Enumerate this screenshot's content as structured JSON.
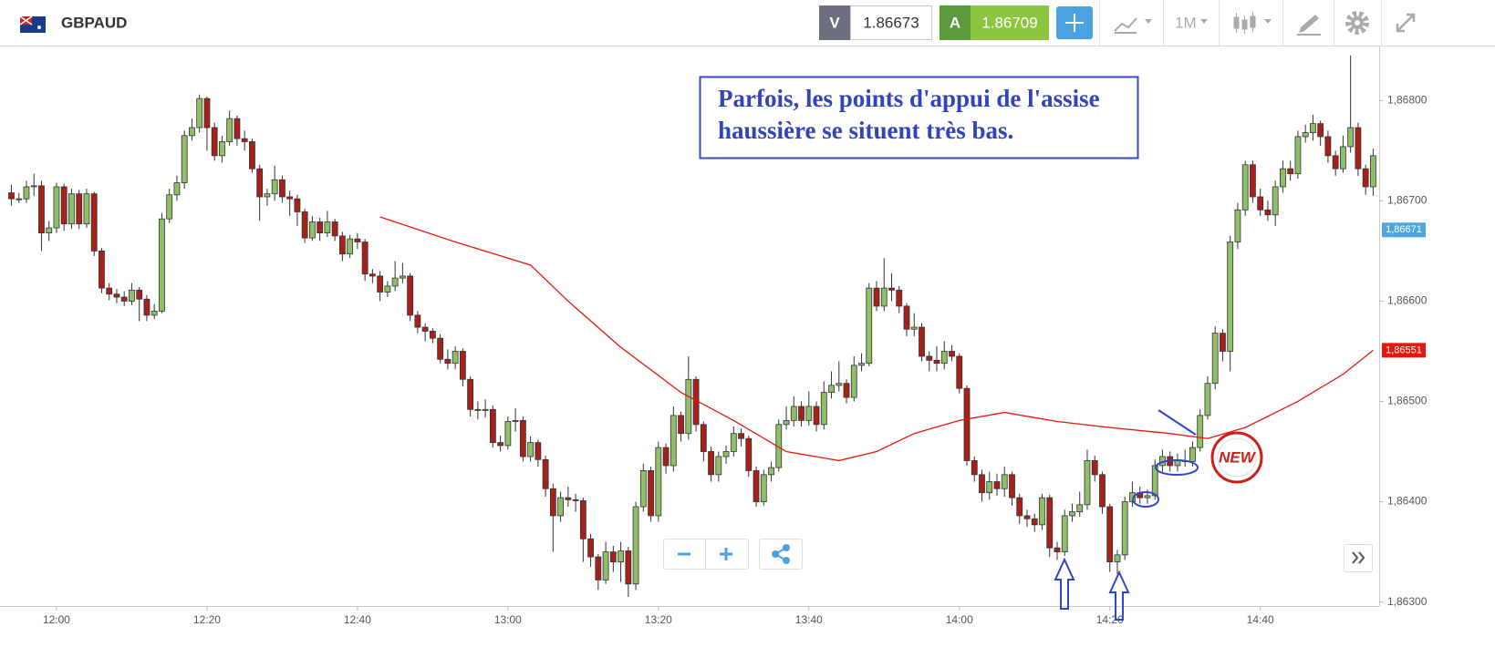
{
  "toolbar": {
    "symbol": "GBPAUD",
    "bid_tag": "V",
    "bid": "1.86673",
    "ask_tag": "A",
    "ask": "1.86709",
    "timeframe": "1M"
  },
  "chart_data": {
    "type": "candlestick",
    "x": [
      714,
      715,
      716,
      717,
      718,
      719,
      720,
      721,
      722,
      723,
      724,
      725,
      726,
      727,
      728,
      729,
      730,
      731,
      732,
      733,
      734,
      735,
      736,
      737,
      738,
      739,
      740,
      741,
      742,
      743,
      744,
      745,
      746,
      747,
      748,
      749,
      750,
      751,
      752,
      753,
      754,
      755,
      756,
      757,
      758,
      759,
      760,
      761,
      762,
      763,
      764,
      765,
      766,
      767,
      768,
      769,
      770,
      771,
      772,
      773,
      774,
      775,
      776,
      777,
      778,
      779,
      780,
      781,
      782,
      783,
      784,
      785,
      786,
      787,
      788,
      789,
      790,
      791,
      792,
      793,
      794,
      795,
      796,
      797,
      798,
      799,
      800,
      801,
      802,
      803,
      804,
      805,
      806,
      807,
      808,
      809,
      810,
      811,
      812,
      813,
      814,
      815,
      816,
      817,
      818,
      819,
      820,
      821,
      822,
      823,
      824,
      825,
      826,
      827,
      828,
      829,
      830,
      831,
      832,
      833,
      834,
      835,
      836,
      837,
      838,
      839,
      840,
      841,
      842,
      843,
      844,
      845,
      846,
      847,
      848,
      849,
      850,
      851,
      852,
      853,
      854,
      855,
      856,
      857,
      858,
      859,
      860,
      861,
      862,
      863,
      864,
      865,
      866,
      867,
      868,
      869,
      870,
      871,
      872,
      873,
      874,
      875,
      876,
      877,
      878,
      879,
      880,
      881,
      882,
      883,
      884,
      885,
      886,
      887,
      888,
      889,
      890,
      891,
      892,
      893,
      894,
      895
    ],
    "open": [
      1.86708,
      1.86702,
      1.86702,
      1.86714,
      1.86715,
      1.86668,
      1.86673,
      1.86714,
      1.86677,
      1.86707,
      1.86677,
      1.86707,
      1.8665,
      1.86613,
      1.86607,
      1.86604,
      1.866,
      1.86611,
      1.86602,
      1.86586,
      1.8659,
      1.86682,
      1.86706,
      1.86718,
      1.86765,
      1.86773,
      1.86802,
      1.86773,
      1.86745,
      1.86759,
      1.86782,
      1.86762,
      1.86759,
      1.86732,
      1.86704,
      1.86707,
      1.86721,
      1.86704,
      1.86702,
      1.86689,
      1.86663,
      1.86679,
      1.86668,
      1.86679,
      1.86665,
      1.86647,
      1.86662,
      1.86659,
      1.86627,
      1.86625,
      1.86609,
      1.86615,
      1.86623,
      1.86625,
      1.86586,
      1.86574,
      1.8657,
      1.86563,
      1.86542,
      1.86538,
      1.8655,
      1.86522,
      1.86492,
      1.86491,
      1.86492,
      1.86459,
      1.86456,
      1.8648,
      1.86481,
      1.86445,
      1.86459,
      1.86442,
      1.86413,
      1.86386,
      1.86404,
      1.86402,
      1.86401,
      1.86363,
      1.86345,
      1.86322,
      1.8635,
      1.8634,
      1.86351,
      1.86318,
      1.86395,
      1.86431,
      1.86386,
      1.86454,
      1.86436,
      1.86486,
      1.86468,
      1.86522,
      1.86477,
      1.8645,
      1.86427,
      1.86445,
      1.8645,
      1.86468,
      1.86463,
      1.86431,
      1.864,
      1.86427,
      1.86434,
      1.86477,
      1.86481,
      1.86495,
      1.86481,
      1.86495,
      1.86477,
      1.86509,
      1.86516,
      1.86518,
      1.86504,
      1.86536,
      1.86538,
      1.86613,
      1.86595,
      1.86613,
      1.86611,
      1.86595,
      1.86572,
      1.86574,
      1.86545,
      1.86541,
      1.86538,
      1.8655,
      1.86545,
      1.86513,
      1.86441,
      1.86427,
      1.86409,
      1.8642,
      1.86413,
      1.86427,
      1.86404,
      1.86386,
      1.86383,
      1.86377,
      1.86404,
      1.86354,
      1.8635,
      1.86386,
      1.8639,
      1.86397,
      1.86441,
      1.86427,
      1.86395,
      1.8634,
      1.86347,
      1.864,
      1.86409,
      1.86404,
      1.86406,
      1.86436,
      1.86445,
      1.86436,
      1.86441,
      1.8644,
      1.86454,
      1.86486,
      1.86518,
      1.86568,
      1.8655,
      1.86659,
      1.86691,
      1.86736,
      1.86704,
      1.86691,
      1.86686,
      1.86714,
      1.86732,
      1.86727,
      1.86764,
      1.86768,
      1.86777,
      1.86764,
      1.86745,
      1.86732,
      1.86754,
      1.86773,
      1.86732,
      1.86714
    ],
    "high": [
      1.86716,
      1.86708,
      1.8672,
      1.86727,
      1.8672,
      1.8668,
      1.86718,
      1.86717,
      1.86712,
      1.86711,
      1.86712,
      1.86709,
      1.86653,
      1.86618,
      1.86612,
      1.8661,
      1.86618,
      1.86614,
      1.86606,
      1.86597,
      1.86688,
      1.86712,
      1.86725,
      1.8677,
      1.86782,
      1.86806,
      1.86804,
      1.86778,
      1.86765,
      1.8679,
      1.86785,
      1.8677,
      1.86762,
      1.86736,
      1.86712,
      1.86735,
      1.86725,
      1.8671,
      1.86706,
      1.86692,
      1.86685,
      1.86683,
      1.8669,
      1.86682,
      1.86669,
      1.86666,
      1.86668,
      1.86662,
      1.86632,
      1.8663,
      1.8662,
      1.8664,
      1.86638,
      1.86628,
      1.8659,
      1.86578,
      1.86573,
      1.86567,
      1.86552,
      1.86555,
      1.86553,
      1.86525,
      1.865,
      1.86502,
      1.86496,
      1.86466,
      1.86485,
      1.86493,
      1.86485,
      1.86465,
      1.86462,
      1.86446,
      1.86418,
      1.8641,
      1.86415,
      1.86408,
      1.86404,
      1.86368,
      1.86348,
      1.8636,
      1.86356,
      1.8636,
      1.86355,
      1.864,
      1.86438,
      1.86435,
      1.8646,
      1.86458,
      1.86495,
      1.8649,
      1.86545,
      1.86525,
      1.8648,
      1.86455,
      1.8645,
      1.86456,
      1.86475,
      1.86473,
      1.86466,
      1.86435,
      1.86432,
      1.8644,
      1.86482,
      1.86495,
      1.86505,
      1.865,
      1.8651,
      1.865,
      1.8652,
      1.8653,
      1.8654,
      1.86522,
      1.86545,
      1.86548,
      1.86618,
      1.8662,
      1.86643,
      1.86628,
      1.86615,
      1.86598,
      1.86588,
      1.86578,
      1.8655,
      1.86555,
      1.8656,
      1.86556,
      1.86548,
      1.86516,
      1.86445,
      1.86432,
      1.8643,
      1.86428,
      1.86435,
      1.8643,
      1.86408,
      1.86392,
      1.86388,
      1.86408,
      1.86407,
      1.8636,
      1.86392,
      1.86398,
      1.8641,
      1.86452,
      1.86446,
      1.8643,
      1.86398,
      1.86352,
      1.86405,
      1.8642,
      1.86415,
      1.86412,
      1.86442,
      1.86452,
      1.8645,
      1.86448,
      1.86452,
      1.8646,
      1.86492,
      1.86525,
      1.86575,
      1.86572,
      1.86665,
      1.86698,
      1.8674,
      1.8674,
      1.86712,
      1.867,
      1.8672,
      1.8674,
      1.8674,
      1.8677,
      1.86776,
      1.86786,
      1.8678,
      1.8677,
      1.8675,
      1.86765,
      1.86845,
      1.86778,
      1.86736,
      1.86752
    ],
    "low": [
      1.86695,
      1.86698,
      1.86698,
      1.86705,
      1.8665,
      1.8666,
      1.86668,
      1.8667,
      1.86672,
      1.86672,
      1.86673,
      1.86645,
      1.86608,
      1.86601,
      1.86598,
      1.86595,
      1.86596,
      1.8658,
      1.8658,
      1.86582,
      1.86588,
      1.86678,
      1.867,
      1.86712,
      1.8676,
      1.86768,
      1.8675,
      1.8674,
      1.86738,
      1.86755,
      1.86755,
      1.8675,
      1.86728,
      1.8668,
      1.86695,
      1.867,
      1.86698,
      1.86685,
      1.86675,
      1.86658,
      1.8666,
      1.8666,
      1.86664,
      1.8666,
      1.8664,
      1.86643,
      1.86652,
      1.8662,
      1.86618,
      1.866,
      1.86604,
      1.8661,
      1.86618,
      1.8658,
      1.86568,
      1.8656,
      1.86558,
      1.86538,
      1.86532,
      1.86532,
      1.86515,
      1.86485,
      1.86482,
      1.86484,
      1.86454,
      1.8645,
      1.86452,
      1.8647,
      1.8644,
      1.8644,
      1.86435,
      1.86405,
      1.8635,
      1.8638,
      1.86395,
      1.8639,
      1.8634,
      1.86335,
      1.86312,
      1.86318,
      1.8633,
      1.8632,
      1.86305,
      1.86312,
      1.8639,
      1.8638,
      1.8638,
      1.86428,
      1.8643,
      1.8646,
      1.86462,
      1.8647,
      1.8644,
      1.8642,
      1.8642,
      1.86438,
      1.86445,
      1.86455,
      1.86425,
      1.86395,
      1.86396,
      1.8642,
      1.8643,
      1.86472,
      1.86475,
      1.86475,
      1.86476,
      1.8647,
      1.86472,
      1.86503,
      1.8651,
      1.86498,
      1.865,
      1.8653,
      1.86535,
      1.8659,
      1.8659,
      1.866,
      1.86588,
      1.86565,
      1.86565,
      1.8654,
      1.8653,
      1.8653,
      1.86532,
      1.8654,
      1.86508,
      1.86436,
      1.8642,
      1.864,
      1.86402,
      1.86406,
      1.86405,
      1.86396,
      1.86378,
      1.86375,
      1.8637,
      1.86372,
      1.86345,
      1.86342,
      1.86346,
      1.8638,
      1.86385,
      1.86392,
      1.8642,
      1.86388,
      1.8633,
      1.86328,
      1.86342,
      1.86395,
      1.86398,
      1.86398,
      1.86402,
      1.8643,
      1.8643,
      1.8643,
      1.86435,
      1.86435,
      1.8645,
      1.86482,
      1.86512,
      1.8654,
      1.8653,
      1.86652,
      1.86685,
      1.86698,
      1.86685,
      1.8668,
      1.86675,
      1.86708,
      1.8672,
      1.86722,
      1.86758,
      1.8676,
      1.86755,
      1.86738,
      1.86725,
      1.86728,
      1.86748,
      1.86725,
      1.86706,
      1.86705
    ],
    "close": [
      1.86702,
      1.86702,
      1.86714,
      1.86715,
      1.86668,
      1.86673,
      1.86714,
      1.86677,
      1.86707,
      1.86677,
      1.86707,
      1.8665,
      1.86613,
      1.86607,
      1.86604,
      1.866,
      1.86611,
      1.86602,
      1.86586,
      1.8659,
      1.86682,
      1.86706,
      1.86718,
      1.86765,
      1.86773,
      1.86802,
      1.86773,
      1.86745,
      1.86759,
      1.86782,
      1.86762,
      1.86759,
      1.86732,
      1.86704,
      1.86707,
      1.86721,
      1.86704,
      1.86702,
      1.86689,
      1.86663,
      1.86679,
      1.86668,
      1.86679,
      1.86665,
      1.86647,
      1.86662,
      1.86659,
      1.86627,
      1.86625,
      1.86609,
      1.86615,
      1.86623,
      1.86625,
      1.86586,
      1.86574,
      1.8657,
      1.86563,
      1.86542,
      1.86538,
      1.8655,
      1.86522,
      1.86492,
      1.86491,
      1.86492,
      1.86459,
      1.86456,
      1.8648,
      1.86481,
      1.86445,
      1.86459,
      1.86442,
      1.86413,
      1.86386,
      1.86404,
      1.86402,
      1.86401,
      1.86363,
      1.86345,
      1.86322,
      1.8635,
      1.8634,
      1.86351,
      1.86318,
      1.86395,
      1.86431,
      1.86386,
      1.86454,
      1.86436,
      1.86486,
      1.86468,
      1.86522,
      1.86477,
      1.8645,
      1.86427,
      1.86445,
      1.8645,
      1.86468,
      1.86463,
      1.86431,
      1.864,
      1.86427,
      1.86434,
      1.86477,
      1.86481,
      1.86495,
      1.86481,
      1.86495,
      1.86477,
      1.86509,
      1.86516,
      1.86518,
      1.86504,
      1.86536,
      1.86538,
      1.86613,
      1.86595,
      1.86613,
      1.86611,
      1.86595,
      1.86572,
      1.86574,
      1.86545,
      1.86541,
      1.86538,
      1.8655,
      1.86545,
      1.86513,
      1.86441,
      1.86427,
      1.86409,
      1.8642,
      1.86413,
      1.86427,
      1.86404,
      1.86386,
      1.86383,
      1.86377,
      1.86404,
      1.86354,
      1.8635,
      1.86386,
      1.8639,
      1.86397,
      1.86441,
      1.86427,
      1.86395,
      1.8634,
      1.86347,
      1.864,
      1.86409,
      1.86404,
      1.86406,
      1.86436,
      1.86445,
      1.86436,
      1.86441,
      1.8644,
      1.86454,
      1.86486,
      1.86518,
      1.86568,
      1.8655,
      1.86659,
      1.86691,
      1.86736,
      1.86704,
      1.86691,
      1.86686,
      1.86714,
      1.86732,
      1.86727,
      1.86764,
      1.86768,
      1.86777,
      1.86764,
      1.86745,
      1.86732,
      1.86754,
      1.86773,
      1.86732,
      1.86714,
      1.86745
    ],
    "up_color": "#8fbf68",
    "down_color": "#a8201a",
    "moving_average": {
      "color": "#e8160c",
      "x": [
        763,
        773,
        783,
        788,
        795,
        803,
        810,
        817,
        824,
        829,
        834,
        840,
        846,
        853,
        860,
        868,
        873,
        878,
        885,
        891,
        895
      ],
      "values": [
        1.86684,
        1.86659,
        1.86636,
        1.866,
        1.86554,
        1.86509,
        1.86481,
        1.8645,
        1.86441,
        1.8645,
        1.86468,
        1.86481,
        1.86489,
        1.8648,
        1.86474,
        1.86468,
        1.86463,
        1.86474,
        1.865,
        1.86527,
        1.86551
      ]
    },
    "xlim": [
      713.7,
      895.8
    ],
    "ylim": [
      1.86296,
      1.86853
    ],
    "xticks": [
      {
        "value": 720,
        "label": "12:00"
      },
      {
        "value": 740,
        "label": "12:20"
      },
      {
        "value": 760,
        "label": "12:40"
      },
      {
        "value": 780,
        "label": "13:00"
      },
      {
        "value": 800,
        "label": "13:20"
      },
      {
        "value": 820,
        "label": "13:40"
      },
      {
        "value": 840,
        "label": "14:00"
      },
      {
        "value": 860,
        "label": "14:20"
      },
      {
        "value": 880,
        "label": "14:40"
      }
    ],
    "yticks": [
      {
        "value": 1.863,
        "label": "1,86300"
      },
      {
        "value": 1.864,
        "label": "1,86400"
      },
      {
        "value": 1.865,
        "label": "1,86500"
      },
      {
        "value": 1.866,
        "label": "1,86600"
      },
      {
        "value": 1.867,
        "label": "1,86700"
      },
      {
        "value": 1.868,
        "label": "1,86800"
      }
    ],
    "price_labels": [
      {
        "value": 1.86671,
        "label": "1,86671",
        "color": "#4da6de"
      },
      {
        "value": 1.86551,
        "label": "1,86551",
        "color": "#e8160c"
      }
    ],
    "annotation": [
      "Parfois, les points d'appui de l'assise",
      "haussière se situent très bas."
    ],
    "badge": "NEW"
  }
}
